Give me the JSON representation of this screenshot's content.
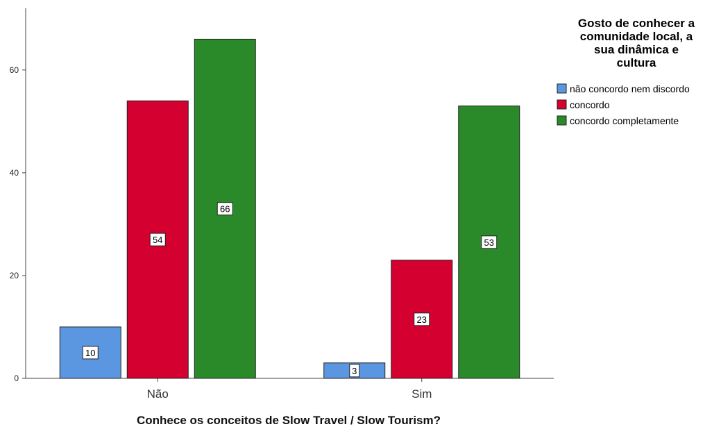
{
  "chart_data": {
    "type": "bar",
    "categories": [
      "Não",
      "Sim"
    ],
    "series": [
      {
        "name": "não concordo nem discordo",
        "values": [
          10,
          3
        ],
        "color": "#5b97e1"
      },
      {
        "name": "concordo",
        "values": [
          54,
          23
        ],
        "color": "#d4002f"
      },
      {
        "name": "concordo completamente",
        "values": [
          66,
          53
        ],
        "color": "#2a8a2a"
      }
    ],
    "title": "",
    "xlabel": "Conhece os conceitos de Slow Travel / Slow Tourism?",
    "ylabel": "",
    "ylim": [
      0,
      72
    ],
    "yticks": [
      0,
      20,
      40,
      60
    ],
    "grid": false,
    "legend": {
      "title_lines": [
        "Gosto de conhecer a",
        "comunidade local, a",
        "sua dinâmica e",
        "cultura"
      ],
      "placement": "top-right"
    }
  }
}
